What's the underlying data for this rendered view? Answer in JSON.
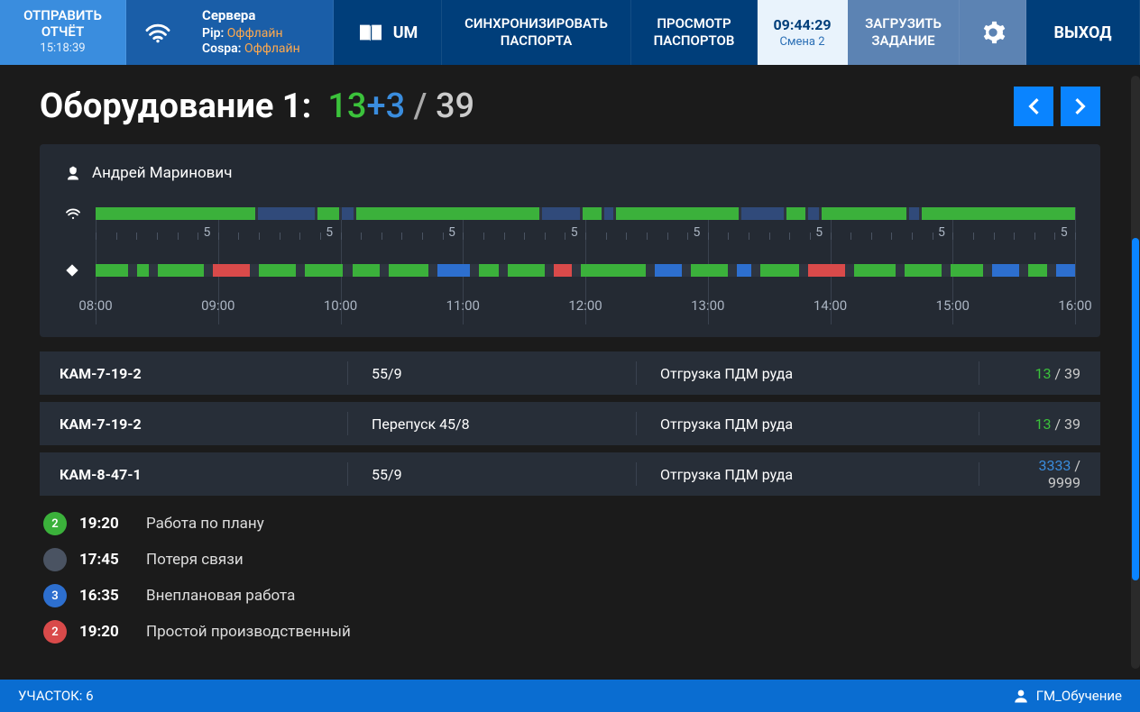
{
  "topbar": {
    "report": {
      "label": "ОТПРАВИТЬ\nОТЧЁТ",
      "time": "15:18:39"
    },
    "servers": {
      "title": "Сервера",
      "pip_label": "Pip:",
      "pip_status": "Оффлайн",
      "cospa_label": "Cospa:",
      "cospa_status": "Оффлайн"
    },
    "um": "UM",
    "sync": "СИНХРОНИЗИРОВАТЬ\nПАСПОРТА",
    "view": "ПРОСМОТР\nПАСПОРТОВ",
    "clock": {
      "time": "09:44:29",
      "shift": "Смена 2"
    },
    "load": "ЗАГРУЗИТЬ\nЗАДАНИЕ",
    "exit": "ВЫХОД"
  },
  "page": {
    "title": "Оборудование 1:",
    "count_done": "13",
    "count_plus": "+3",
    "count_total": "39"
  },
  "operator": "Андрей Маринович",
  "timeline": {
    "hours": [
      "08:00",
      "09:00",
      "10:00",
      "11:00",
      "12:00",
      "13:00",
      "14:00",
      "15:00",
      "16:00"
    ],
    "fives_label": "5",
    "row1": [
      {
        "c": "g",
        "w": 17
      },
      {
        "c": "db",
        "w": 6
      },
      {
        "c": "g",
        "w": 2.3
      },
      {
        "c": "db",
        "w": 1.2
      },
      {
        "c": "g",
        "w": 19.5
      },
      {
        "c": "db",
        "w": 4
      },
      {
        "c": "g",
        "w": 2
      },
      {
        "c": "db",
        "w": 1
      },
      {
        "c": "g",
        "w": 13
      },
      {
        "c": "db",
        "w": 4.5
      },
      {
        "c": "g",
        "w": 2
      },
      {
        "c": "db",
        "w": 1.2
      },
      {
        "c": "g",
        "w": 9
      },
      {
        "c": "db",
        "w": 1
      },
      {
        "c": "g",
        "w": 16.3
      }
    ],
    "row2": [
      {
        "c": "g",
        "w": 3.5
      },
      {
        "c": "sp",
        "w": 0.4
      },
      {
        "c": "g",
        "w": 1.3
      },
      {
        "c": "sp",
        "w": 0.4
      },
      {
        "c": "g",
        "w": 5
      },
      {
        "c": "sp",
        "w": 0.4
      },
      {
        "c": "r",
        "w": 4
      },
      {
        "c": "sp",
        "w": 0.4
      },
      {
        "c": "g",
        "w": 4
      },
      {
        "c": "sp",
        "w": 0.4
      },
      {
        "c": "g",
        "w": 4.2
      },
      {
        "c": "sp",
        "w": 0.4
      },
      {
        "c": "g",
        "w": 3
      },
      {
        "c": "sp",
        "w": 0.4
      },
      {
        "c": "g",
        "w": 4.3
      },
      {
        "c": "sp",
        "w": 0.4
      },
      {
        "c": "b",
        "w": 3.5
      },
      {
        "c": "sp",
        "w": 0.4
      },
      {
        "c": "g",
        "w": 2.2
      },
      {
        "c": "sp",
        "w": 0.4
      },
      {
        "c": "g",
        "w": 4
      },
      {
        "c": "sp",
        "w": 0.4
      },
      {
        "c": "r",
        "w": 2
      },
      {
        "c": "sp",
        "w": 0.4
      },
      {
        "c": "g",
        "w": 7
      },
      {
        "c": "sp",
        "w": 0.4
      },
      {
        "c": "b",
        "w": 3
      },
      {
        "c": "sp",
        "w": 0.4
      },
      {
        "c": "g",
        "w": 4
      },
      {
        "c": "sp",
        "w": 0.4
      },
      {
        "c": "b",
        "w": 1.5
      },
      {
        "c": "sp",
        "w": 0.4
      },
      {
        "c": "g",
        "w": 4.3
      },
      {
        "c": "sp",
        "w": 0.4
      },
      {
        "c": "r",
        "w": 4
      },
      {
        "c": "sp",
        "w": 0.4
      },
      {
        "c": "g",
        "w": 4.5
      },
      {
        "c": "sp",
        "w": 0.4
      },
      {
        "c": "g",
        "w": 4
      },
      {
        "c": "sp",
        "w": 0.4
      },
      {
        "c": "g",
        "w": 3.5
      },
      {
        "c": "sp",
        "w": 0.4
      },
      {
        "c": "b",
        "w": 3
      },
      {
        "c": "sp",
        "w": 0.4
      },
      {
        "c": "g",
        "w": 2
      },
      {
        "c": "sp",
        "w": 0.4
      },
      {
        "c": "b",
        "w": 2.1
      }
    ]
  },
  "equipment": [
    {
      "name": "КАМ-7-19-2",
      "col2": "55/9",
      "col3": "Отгрузка ПДМ руда",
      "done": "13",
      "done_color": "g",
      "total": "39"
    },
    {
      "name": "КАМ-7-19-2",
      "col2": "Перепуск 45/8",
      "col3": "Отгрузка ПДМ руда",
      "done": "13",
      "done_color": "g",
      "total": "39"
    },
    {
      "name": "КАМ-8-47-1",
      "col2": "55/9",
      "col3": "Отгрузка ПДМ руда",
      "done": "3333",
      "done_color": "b",
      "total": "9999"
    }
  ],
  "events": [
    {
      "badge_color": "green",
      "badge": "2",
      "time": "19:20",
      "text": "Работа по плану"
    },
    {
      "badge_color": "grey",
      "badge": "",
      "time": "17:45",
      "text": "Потеря связи"
    },
    {
      "badge_color": "blue",
      "badge": "3",
      "time": "16:35",
      "text": "Внеплановая работа"
    },
    {
      "badge_color": "red",
      "badge": "2",
      "time": "19:20",
      "text": "Простой производственный"
    }
  ],
  "bottombar": {
    "area_label": "УЧАСТОК:",
    "area_value": "6",
    "user": "ГМ_Обучение"
  }
}
